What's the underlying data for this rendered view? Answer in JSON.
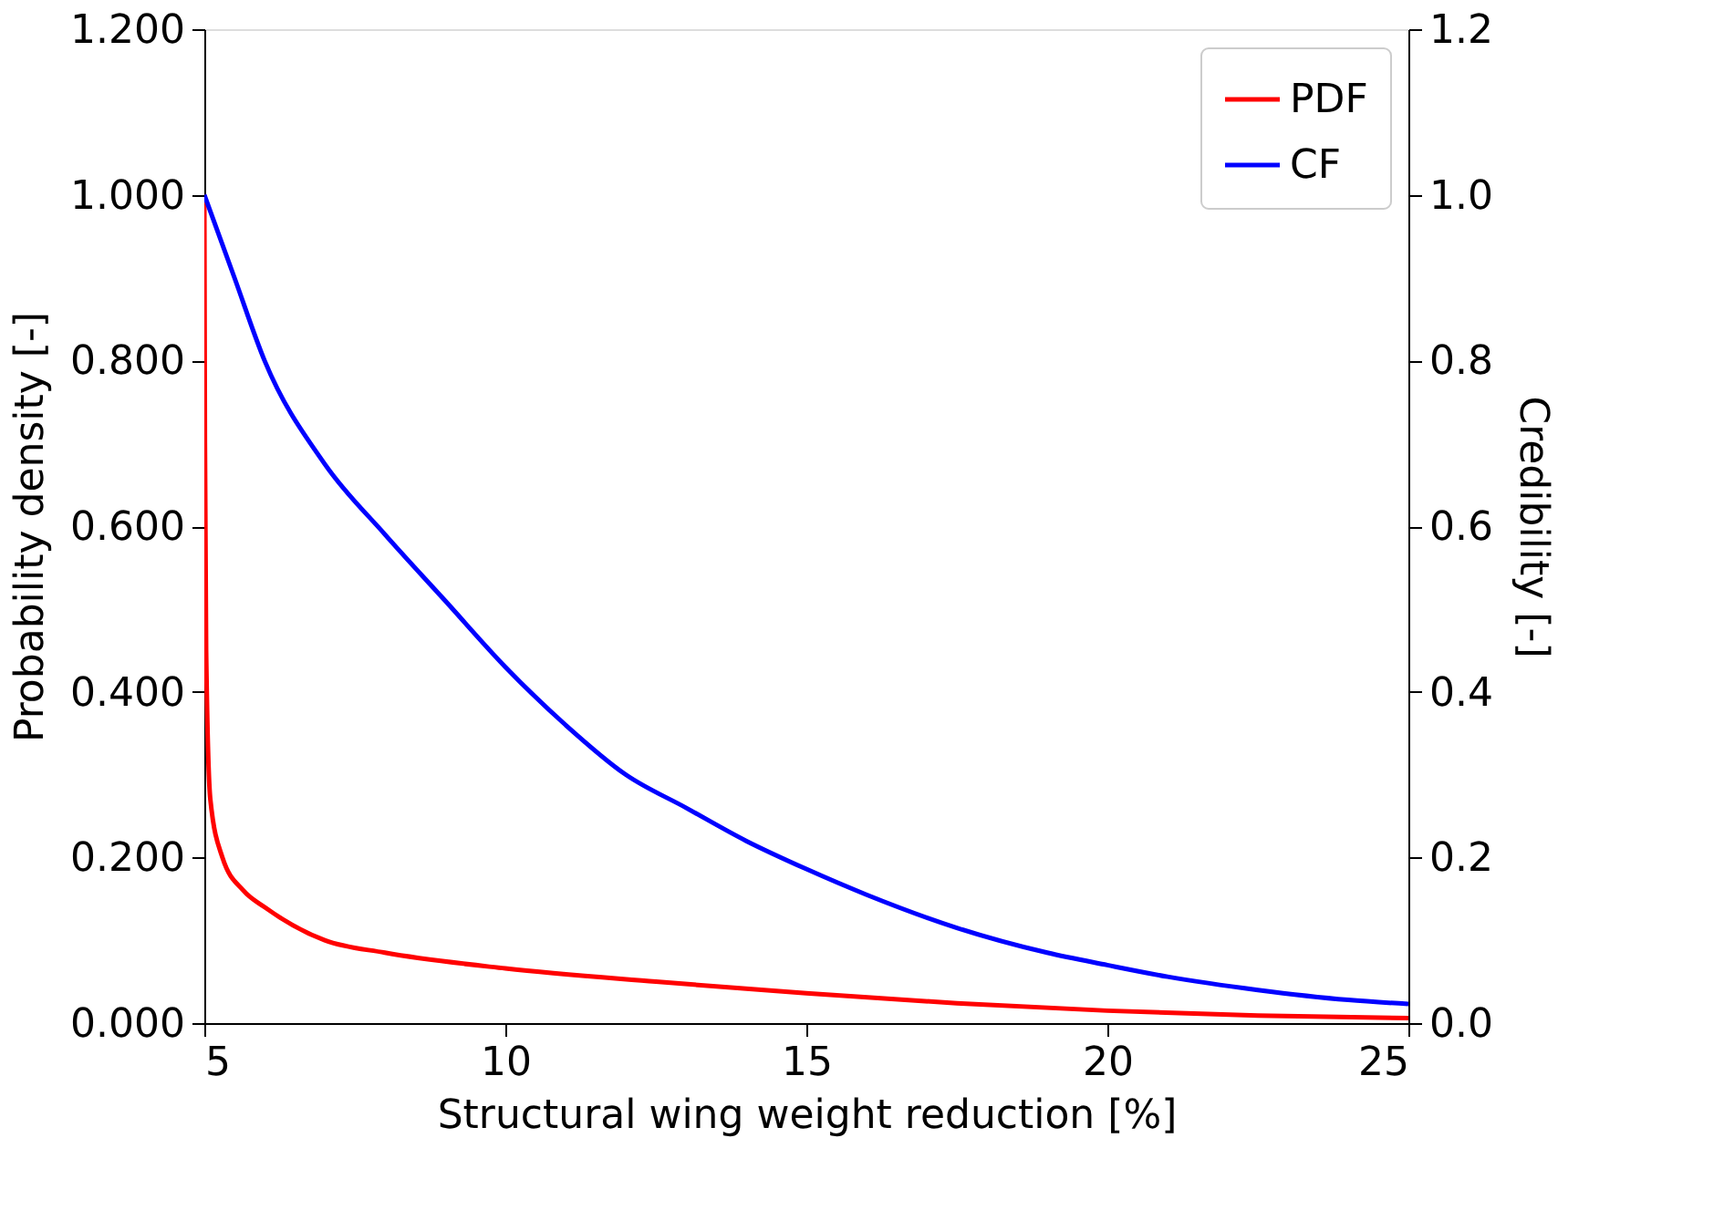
{
  "chart_data": {
    "type": "line",
    "xlabel": "Structural wing weight reduction [%]",
    "ylabel": "Probability density [-]",
    "y2label": "Credibility [-]",
    "xlim": [
      5,
      25
    ],
    "xticks": [
      5,
      10,
      15,
      20,
      25
    ],
    "ylim": [
      0,
      1.2
    ],
    "yticks": [
      {
        "value": 0,
        "label": "0.000"
      },
      {
        "value": 0.2,
        "label": "0.200"
      },
      {
        "value": 0.4,
        "label": "0.400"
      },
      {
        "value": 0.6,
        "label": "0.600"
      },
      {
        "value": 0.8,
        "label": "0.800"
      },
      {
        "value": 1.0,
        "label": "1.000"
      },
      {
        "value": 1.2,
        "label": "1.200"
      }
    ],
    "y2lim": [
      0,
      1.2
    ],
    "y2ticks": [
      {
        "value": 0,
        "label": "0.0"
      },
      {
        "value": 0.2,
        "label": "0.2"
      },
      {
        "value": 0.4,
        "label": "0.4"
      },
      {
        "value": 0.6,
        "label": "0.6"
      },
      {
        "value": 0.8,
        "label": "0.8"
      },
      {
        "value": 1.0,
        "label": "1.0"
      },
      {
        "value": 1.2,
        "label": "1.2"
      }
    ],
    "grid": false,
    "legend": "top right",
    "line_style": "solid",
    "series": [
      {
        "name": "PDF",
        "color": "#ff0000",
        "x": [
          5,
          5.01,
          5.03,
          5.1,
          5.3,
          5.65,
          6,
          7,
          8,
          10,
          12.5,
          15,
          17.5,
          20,
          22.5,
          25
        ],
        "values": [
          1.0,
          0.7,
          0.45,
          0.27,
          0.2,
          0.16,
          0.14,
          0.1,
          0.085,
          0.066,
          0.05,
          0.036,
          0.024,
          0.015,
          0.009,
          0.006
        ]
      },
      {
        "name": "CF",
        "color": "#0000ff",
        "axis": "y2",
        "x": [
          5,
          5.5,
          6,
          7,
          8,
          9,
          10,
          11,
          12,
          13,
          14,
          15,
          16,
          17.5,
          19,
          20,
          21,
          22.5,
          24,
          25
        ],
        "values": [
          1.0,
          0.9,
          0.8,
          0.675,
          0.59,
          0.51,
          0.43,
          0.36,
          0.3,
          0.26,
          0.22,
          0.186,
          0.155,
          0.115,
          0.085,
          0.07,
          0.056,
          0.04,
          0.028,
          0.023
        ]
      }
    ]
  }
}
